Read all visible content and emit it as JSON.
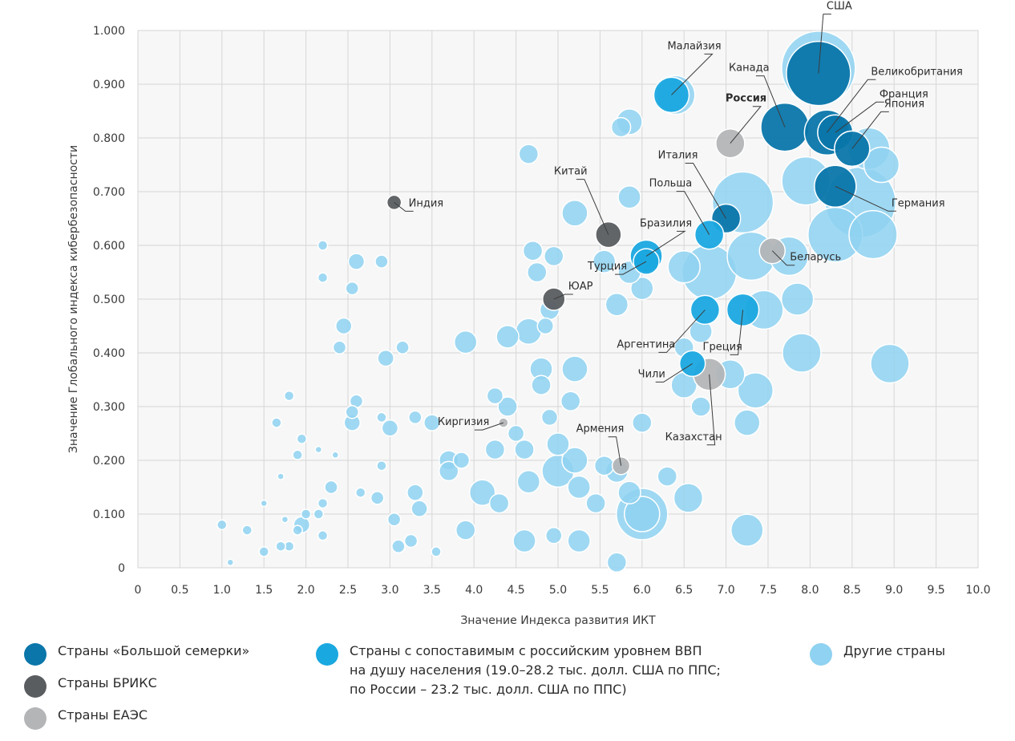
{
  "colors": {
    "g7": "#0a76aa",
    "brics": "#5a5d60",
    "eaeu": "#b3b5b7",
    "comparable": "#1aa8e0",
    "other": "#8fd2f1",
    "grid": "#d6d6d6",
    "background": "#f7f7f7"
  },
  "chart_data": {
    "type": "scatter",
    "xlabel": "Значение Индекса развития ИКТ",
    "ylabel": "Значение Глобального индекса кибербезопасности",
    "xlim": [
      0,
      10
    ],
    "ylim": [
      0,
      1
    ],
    "x_ticks": [
      "0",
      "0.5",
      "1.0",
      "1.5",
      "2.0",
      "2.5",
      "3.0",
      "3.5",
      "4.0",
      "4.5",
      "5.0",
      "5.5",
      "6.0",
      "6.5",
      "7.0",
      "7.5",
      "8.0",
      "8.5",
      "9.0",
      "9.5",
      "10.0"
    ],
    "y_ticks": [
      "0",
      "0.100",
      "0.200",
      "0.300",
      "0.400",
      "0.500",
      "0.600",
      "0.700",
      "0.800",
      "0.900",
      "1.000"
    ],
    "grid": true,
    "legend_position": "bottom",
    "legend": [
      {
        "group": "g7",
        "label": "Страны «Большой семерки»"
      },
      {
        "group": "brics",
        "label": "Страны БРИКС"
      },
      {
        "group": "eaeu",
        "label": "Страны ЕАЭС"
      },
      {
        "group": "comparable",
        "label": "Страны с сопоставимым с российским уровнем ВВП\nна душу населения (19.0–28.2 тыс. долл. США по ППС;\nпо России – 23.2 тыс. долл. США по ППС)"
      },
      {
        "group": "other",
        "label": "Другие страны"
      }
    ],
    "labeled_points": [
      {
        "name": "США",
        "group": "g7",
        "x": 8.1,
        "y": 0.92,
        "r": 40,
        "label": {
          "dx": 10,
          "dy": -80,
          "anchor": "start"
        }
      },
      {
        "name": "Великобритания",
        "group": "g7",
        "x": 8.2,
        "y": 0.81,
        "r": 28,
        "label": {
          "dx": 55,
          "dy": -72,
          "anchor": "start"
        }
      },
      {
        "name": "Франция",
        "group": "g7",
        "x": 8.3,
        "y": 0.81,
        "r": 22,
        "label": {
          "dx": 55,
          "dy": -44,
          "anchor": "start"
        }
      },
      {
        "name": "Япония",
        "group": "g7",
        "x": 8.5,
        "y": 0.78,
        "r": 22,
        "label": {
          "dx": 40,
          "dy": -52,
          "anchor": "start"
        }
      },
      {
        "name": "Канада",
        "group": "g7",
        "x": 7.7,
        "y": 0.82,
        "r": 30,
        "label": {
          "dx": -70,
          "dy": -70,
          "anchor": "start"
        }
      },
      {
        "name": "Германия",
        "group": "g7",
        "x": 8.3,
        "y": 0.71,
        "r": 26,
        "label": {
          "dx": 70,
          "dy": 25,
          "anchor": "start"
        }
      },
      {
        "name": "Италия",
        "group": "g7",
        "x": 7.0,
        "y": 0.65,
        "r": 18,
        "label": {
          "dx": -85,
          "dy": -75,
          "anchor": "start"
        }
      },
      {
        "name": "Россия",
        "group": "eaeu",
        "x": 7.05,
        "y": 0.79,
        "r": 18,
        "bold": true,
        "label": {
          "dx": -6,
          "dy": -52,
          "anchor": "start"
        }
      },
      {
        "name": "Беларусь",
        "group": "eaeu",
        "x": 7.55,
        "y": 0.59,
        "r": 16,
        "label": {
          "dx": 22,
          "dy": 12,
          "anchor": "start"
        }
      },
      {
        "name": "Казахстан",
        "group": "eaeu",
        "x": 6.8,
        "y": 0.36,
        "r": 20,
        "label": {
          "dx": -55,
          "dy": 82,
          "anchor": "start"
        }
      },
      {
        "name": "Армения",
        "group": "eaeu",
        "x": 5.75,
        "y": 0.19,
        "r": 11,
        "label": {
          "dx": -56,
          "dy": -42,
          "anchor": "start"
        }
      },
      {
        "name": "Киргизия",
        "group": "eaeu",
        "x": 4.35,
        "y": 0.27,
        "r": 6,
        "label": {
          "dx": -82,
          "dy": 3,
          "anchor": "start"
        }
      },
      {
        "name": "Китай",
        "group": "brics",
        "x": 5.6,
        "y": 0.62,
        "r": 16,
        "label": {
          "dx": -68,
          "dy": -75,
          "anchor": "start"
        }
      },
      {
        "name": "Индия",
        "group": "brics",
        "x": 3.05,
        "y": 0.68,
        "r": 9,
        "label": {
          "dx": 18,
          "dy": 5,
          "anchor": "start"
        }
      },
      {
        "name": "ЮАР",
        "group": "brics",
        "x": 4.95,
        "y": 0.5,
        "r": 14,
        "label": {
          "dx": 18,
          "dy": -12,
          "anchor": "start"
        }
      },
      {
        "name": "Малайзия",
        "group": "comparable",
        "x": 6.35,
        "y": 0.88,
        "r": 22,
        "label": {
          "dx": -5,
          "dy": -57,
          "anchor": "start"
        }
      },
      {
        "name": "Польша",
        "group": "comparable",
        "x": 6.8,
        "y": 0.62,
        "r": 18,
        "label": {
          "dx": -75,
          "dy": -60,
          "anchor": "start"
        }
      },
      {
        "name": "Бразилия",
        "group": "comparable",
        "x": 6.05,
        "y": 0.58,
        "r": 20,
        "label": {
          "dx": -8,
          "dy": -37,
          "anchor": "start"
        }
      },
      {
        "name": "Турция",
        "group": "comparable",
        "x": 6.05,
        "y": 0.57,
        "r": 16,
        "label": {
          "dx": -73,
          "dy": 10,
          "anchor": "start"
        }
      },
      {
        "name": "Аргентина",
        "group": "comparable",
        "x": 6.75,
        "y": 0.48,
        "r": 18,
        "label": {
          "dx": -110,
          "dy": 47,
          "anchor": "start"
        }
      },
      {
        "name": "Греция",
        "group": "comparable",
        "x": 7.2,
        "y": 0.48,
        "r": 20,
        "label": {
          "dx": -50,
          "dy": 50,
          "anchor": "start"
        }
      },
      {
        "name": "Чили",
        "group": "comparable",
        "x": 6.6,
        "y": 0.38,
        "r": 16,
        "label": {
          "dx": -68,
          "dy": 17,
          "anchor": "start"
        }
      }
    ],
    "other_points": [
      [
        8.1,
        0.93,
        46
      ],
      [
        8.6,
        0.68,
        44
      ],
      [
        7.2,
        0.68,
        38
      ],
      [
        6.8,
        0.55,
        34
      ],
      [
        7.3,
        0.58,
        30
      ],
      [
        7.95,
        0.72,
        30
      ],
      [
        8.3,
        0.62,
        34
      ],
      [
        8.75,
        0.62,
        30
      ],
      [
        8.7,
        0.78,
        26
      ],
      [
        8.85,
        0.75,
        22
      ],
      [
        7.75,
        0.58,
        24
      ],
      [
        7.45,
        0.48,
        24
      ],
      [
        7.85,
        0.5,
        20
      ],
      [
        7.9,
        0.4,
        24
      ],
      [
        8.95,
        0.38,
        24
      ],
      [
        7.35,
        0.33,
        22
      ],
      [
        7.05,
        0.36,
        18
      ],
      [
        6.4,
        0.88,
        24
      ],
      [
        5.85,
        0.83,
        16
      ],
      [
        5.75,
        0.82,
        12
      ],
      [
        4.65,
        0.77,
        12
      ],
      [
        5.85,
        0.69,
        14
      ],
      [
        5.2,
        0.66,
        16
      ],
      [
        6.5,
        0.56,
        20
      ],
      [
        6.7,
        0.44,
        14
      ],
      [
        6.5,
        0.41,
        12
      ],
      [
        6.5,
        0.34,
        16
      ],
      [
        6.7,
        0.3,
        12
      ],
      [
        7.25,
        0.27,
        16
      ],
      [
        6.0,
        0.52,
        14
      ],
      [
        5.85,
        0.55,
        14
      ],
      [
        5.55,
        0.57,
        14
      ],
      [
        5.7,
        0.49,
        14
      ],
      [
        4.7,
        0.59,
        12
      ],
      [
        4.75,
        0.55,
        12
      ],
      [
        4.95,
        0.58,
        12
      ],
      [
        4.9,
        0.48,
        12
      ],
      [
        4.85,
        0.45,
        10
      ],
      [
        4.65,
        0.44,
        16
      ],
      [
        4.4,
        0.43,
        14
      ],
      [
        3.9,
        0.42,
        14
      ],
      [
        4.8,
        0.37,
        14
      ],
      [
        5.2,
        0.37,
        16
      ],
      [
        4.8,
        0.34,
        12
      ],
      [
        5.15,
        0.31,
        12
      ],
      [
        4.9,
        0.28,
        10
      ],
      [
        5.0,
        0.23,
        14
      ],
      [
        5.2,
        0.2,
        16
      ],
      [
        5.0,
        0.18,
        20
      ],
      [
        5.25,
        0.15,
        14
      ],
      [
        4.25,
        0.32,
        10
      ],
      [
        4.4,
        0.3,
        12
      ],
      [
        4.5,
        0.25,
        10
      ],
      [
        4.6,
        0.22,
        12
      ],
      [
        4.25,
        0.22,
        12
      ],
      [
        4.65,
        0.16,
        14
      ],
      [
        4.1,
        0.14,
        16
      ],
      [
        4.3,
        0.12,
        12
      ],
      [
        3.7,
        0.2,
        12
      ],
      [
        3.85,
        0.2,
        10
      ],
      [
        3.7,
        0.18,
        12
      ],
      [
        3.5,
        0.27,
        10
      ],
      [
        3.3,
        0.28,
        8
      ],
      [
        3.3,
        0.14,
        10
      ],
      [
        3.35,
        0.11,
        10
      ],
      [
        3.25,
        0.05,
        8
      ],
      [
        3.05,
        0.09,
        8
      ],
      [
        3.1,
        0.04,
        8
      ],
      [
        3.55,
        0.03,
        6
      ],
      [
        3.9,
        0.07,
        12
      ],
      [
        4.6,
        0.05,
        14
      ],
      [
        4.95,
        0.06,
        10
      ],
      [
        5.25,
        0.05,
        14
      ],
      [
        5.45,
        0.12,
        12
      ],
      [
        5.85,
        0.14,
        14
      ],
      [
        5.7,
        0.18,
        14
      ],
      [
        5.55,
        0.19,
        12
      ],
      [
        6.0,
        0.1,
        32
      ],
      [
        6.0,
        0.1,
        22
      ],
      [
        6.3,
        0.17,
        12
      ],
      [
        6.55,
        0.13,
        18
      ],
      [
        6.0,
        0.27,
        12
      ],
      [
        7.25,
        0.07,
        20
      ],
      [
        5.7,
        0.01,
        12
      ],
      [
        2.9,
        0.57,
        8
      ],
      [
        2.2,
        0.6,
        6
      ],
      [
        2.2,
        0.54,
        6
      ],
      [
        2.6,
        0.57,
        10
      ],
      [
        2.55,
        0.52,
        8
      ],
      [
        2.45,
        0.45,
        10
      ],
      [
        2.4,
        0.41,
        8
      ],
      [
        2.95,
        0.39,
        10
      ],
      [
        3.15,
        0.41,
        8
      ],
      [
        3.0,
        0.26,
        10
      ],
      [
        2.9,
        0.28,
        6
      ],
      [
        2.6,
        0.31,
        8
      ],
      [
        2.55,
        0.29,
        8
      ],
      [
        2.55,
        0.27,
        10
      ],
      [
        1.8,
        0.32,
        6
      ],
      [
        1.65,
        0.27,
        6
      ],
      [
        1.95,
        0.24,
        6
      ],
      [
        1.9,
        0.21,
        6
      ],
      [
        2.15,
        0.22,
        4
      ],
      [
        2.35,
        0.21,
        4
      ],
      [
        2.9,
        0.19,
        6
      ],
      [
        2.3,
        0.15,
        8
      ],
      [
        2.2,
        0.12,
        6
      ],
      [
        2.0,
        0.1,
        6
      ],
      [
        1.95,
        0.08,
        10
      ],
      [
        2.15,
        0.1,
        6
      ],
      [
        1.9,
        0.07,
        6
      ],
      [
        2.2,
        0.06,
        6
      ],
      [
        1.75,
        0.09,
        4
      ],
      [
        1.7,
        0.17,
        4
      ],
      [
        1.8,
        0.04,
        6
      ],
      [
        1.7,
        0.04,
        6
      ],
      [
        1.5,
        0.03,
        6
      ],
      [
        1.5,
        0.12,
        4
      ],
      [
        1.3,
        0.07,
        6
      ],
      [
        1.0,
        0.08,
        6
      ],
      [
        1.1,
        0.01,
        4
      ],
      [
        2.65,
        0.14,
        6
      ],
      [
        2.85,
        0.13,
        8
      ]
    ]
  }
}
